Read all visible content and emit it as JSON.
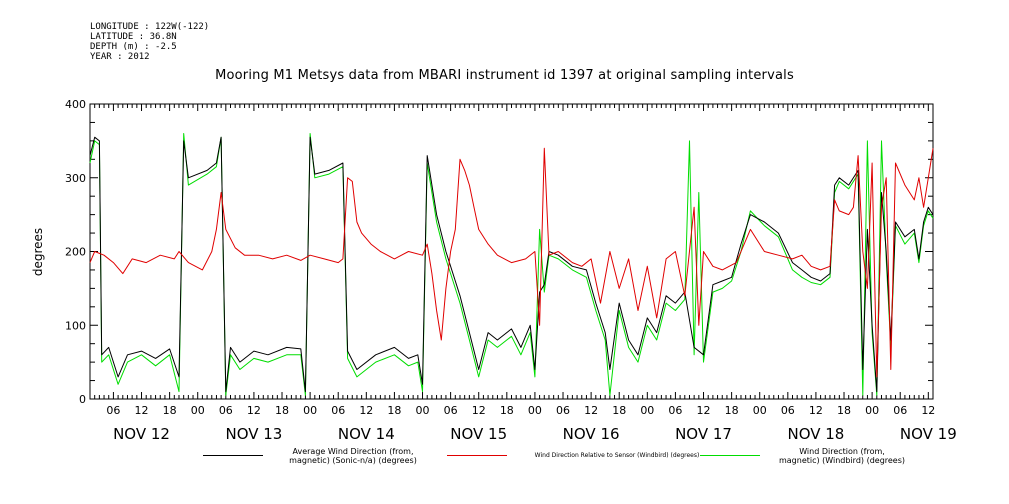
{
  "meta": {
    "longitude": "LONGITUDE : 122W(-122)",
    "latitude": "LATITUDE : 36.8N",
    "depth": "DEPTH (m) : -2.5",
    "year": "YEAR : 2012"
  },
  "chart_data": {
    "type": "line",
    "title": "Mooring M1 Metsys data from MBARI instrument id 1397 at original sampling intervals",
    "xlabel": "",
    "ylabel": "degrees",
    "ylim": [
      0,
      400
    ],
    "yticks": [
      0,
      100,
      200,
      300,
      400
    ],
    "x_unit": "hours since Nov 12 00:00",
    "xlim": [
      1,
      181
    ],
    "hour_ticks": [
      "06",
      "12",
      "18",
      "00"
    ],
    "day_labels": [
      "NOV 12",
      "NOV 13",
      "NOV 14",
      "NOV 15",
      "NOV 16",
      "NOV 17",
      "NOV 18",
      "NOV 19"
    ],
    "grid": false,
    "series": [
      {
        "name": "Average Wind Direction (from, magnetic) (Sonic-n/a) (degrees)",
        "color": "#000000",
        "points": [
          [
            1,
            330
          ],
          [
            2,
            355
          ],
          [
            3,
            350
          ],
          [
            3.5,
            60
          ],
          [
            5,
            70
          ],
          [
            7,
            30
          ],
          [
            9,
            60
          ],
          [
            12,
            65
          ],
          [
            15,
            55
          ],
          [
            18,
            68
          ],
          [
            20,
            30
          ],
          [
            21,
            350
          ],
          [
            22,
            300
          ],
          [
            26,
            310
          ],
          [
            28,
            320
          ],
          [
            29,
            355
          ],
          [
            30,
            10
          ],
          [
            31,
            70
          ],
          [
            33,
            50
          ],
          [
            36,
            65
          ],
          [
            39,
            60
          ],
          [
            43,
            70
          ],
          [
            46,
            68
          ],
          [
            47,
            10
          ],
          [
            48,
            355
          ],
          [
            49,
            305
          ],
          [
            52,
            310
          ],
          [
            55,
            320
          ],
          [
            56,
            65
          ],
          [
            58,
            40
          ],
          [
            62,
            60
          ],
          [
            66,
            70
          ],
          [
            69,
            55
          ],
          [
            71,
            60
          ],
          [
            72,
            20
          ],
          [
            73,
            330
          ],
          [
            75,
            250
          ],
          [
            77,
            200
          ],
          [
            79,
            160
          ],
          [
            80,
            140
          ],
          [
            82,
            90
          ],
          [
            84,
            40
          ],
          [
            86,
            90
          ],
          [
            88,
            80
          ],
          [
            91,
            95
          ],
          [
            93,
            70
          ],
          [
            95,
            100
          ],
          [
            96,
            40
          ],
          [
            97,
            145
          ],
          [
            98,
            155
          ],
          [
            99,
            200
          ],
          [
            101,
            195
          ],
          [
            104,
            180
          ],
          [
            107,
            175
          ],
          [
            109,
            130
          ],
          [
            111,
            90
          ],
          [
            112,
            40
          ],
          [
            114,
            130
          ],
          [
            116,
            80
          ],
          [
            118,
            60
          ],
          [
            120,
            110
          ],
          [
            122,
            90
          ],
          [
            124,
            140
          ],
          [
            126,
            130
          ],
          [
            128,
            145
          ],
          [
            130,
            70
          ],
          [
            132,
            60
          ],
          [
            134,
            155
          ],
          [
            136,
            160
          ],
          [
            138,
            165
          ],
          [
            140,
            210
          ],
          [
            142,
            250
          ],
          [
            145,
            240
          ],
          [
            148,
            225
          ],
          [
            151,
            185
          ],
          [
            153,
            175
          ],
          [
            155,
            165
          ],
          [
            157,
            160
          ],
          [
            159,
            170
          ],
          [
            160,
            290
          ],
          [
            161,
            300
          ],
          [
            163,
            290
          ],
          [
            165,
            310
          ],
          [
            166,
            40
          ],
          [
            167,
            230
          ],
          [
            168,
            100
          ],
          [
            169,
            10
          ],
          [
            170,
            280
          ],
          [
            171,
            200
          ],
          [
            172,
            80
          ],
          [
            173,
            240
          ],
          [
            175,
            220
          ],
          [
            177,
            230
          ],
          [
            178,
            190
          ],
          [
            179,
            240
          ],
          [
            180,
            260
          ],
          [
            181,
            250
          ]
        ]
      },
      {
        "name": "Wind Direction Relative to Sensor (Windbird) (degrees)",
        "color": "#e00000",
        "points": [
          [
            1,
            185
          ],
          [
            2,
            200
          ],
          [
            4,
            195
          ],
          [
            6,
            185
          ],
          [
            8,
            170
          ],
          [
            10,
            190
          ],
          [
            13,
            185
          ],
          [
            16,
            195
          ],
          [
            19,
            190
          ],
          [
            20,
            200
          ],
          [
            22,
            185
          ],
          [
            25,
            175
          ],
          [
            27,
            200
          ],
          [
            28,
            230
          ],
          [
            29,
            280
          ],
          [
            30,
            230
          ],
          [
            32,
            205
          ],
          [
            34,
            195
          ],
          [
            37,
            195
          ],
          [
            40,
            190
          ],
          [
            43,
            195
          ],
          [
            46,
            188
          ],
          [
            48,
            195
          ],
          [
            51,
            190
          ],
          [
            54,
            185
          ],
          [
            55,
            190
          ],
          [
            56,
            300
          ],
          [
            57,
            295
          ],
          [
            58,
            240
          ],
          [
            59,
            225
          ],
          [
            61,
            210
          ],
          [
            63,
            200
          ],
          [
            66,
            190
          ],
          [
            69,
            200
          ],
          [
            72,
            195
          ],
          [
            73,
            210
          ],
          [
            74,
            170
          ],
          [
            75,
            120
          ],
          [
            76,
            80
          ],
          [
            77,
            150
          ],
          [
            78,
            200
          ],
          [
            79,
            230
          ],
          [
            80,
            325
          ],
          [
            81,
            310
          ],
          [
            82,
            290
          ],
          [
            83,
            260
          ],
          [
            84,
            230
          ],
          [
            86,
            210
          ],
          [
            88,
            195
          ],
          [
            91,
            185
          ],
          [
            94,
            190
          ],
          [
            96,
            200
          ],
          [
            97,
            100
          ],
          [
            98,
            340
          ],
          [
            99,
            195
          ],
          [
            101,
            200
          ],
          [
            104,
            185
          ],
          [
            106,
            180
          ],
          [
            108,
            190
          ],
          [
            110,
            130
          ],
          [
            112,
            200
          ],
          [
            114,
            150
          ],
          [
            116,
            190
          ],
          [
            118,
            120
          ],
          [
            120,
            180
          ],
          [
            122,
            110
          ],
          [
            124,
            190
          ],
          [
            126,
            200
          ],
          [
            128,
            140
          ],
          [
            130,
            260
          ],
          [
            131,
            100
          ],
          [
            132,
            200
          ],
          [
            134,
            180
          ],
          [
            136,
            175
          ],
          [
            139,
            185
          ],
          [
            142,
            230
          ],
          [
            145,
            200
          ],
          [
            148,
            195
          ],
          [
            151,
            190
          ],
          [
            153,
            195
          ],
          [
            155,
            180
          ],
          [
            157,
            175
          ],
          [
            159,
            180
          ],
          [
            160,
            270
          ],
          [
            161,
            255
          ],
          [
            163,
            250
          ],
          [
            164,
            260
          ],
          [
            165,
            330
          ],
          [
            166,
            200
          ],
          [
            167,
            150
          ],
          [
            168,
            320
          ],
          [
            169,
            30
          ],
          [
            170,
            260
          ],
          [
            171,
            300
          ],
          [
            172,
            40
          ],
          [
            173,
            320
          ],
          [
            175,
            290
          ],
          [
            177,
            270
          ],
          [
            178,
            300
          ],
          [
            179,
            260
          ],
          [
            180,
            300
          ],
          [
            181,
            340
          ]
        ]
      },
      {
        "name": "Wind Direction (from, magnetic) (Windbird) (degrees)",
        "color": "#00dd00",
        "points": [
          [
            1,
            320
          ],
          [
            2,
            350
          ],
          [
            3,
            345
          ],
          [
            3.5,
            50
          ],
          [
            5,
            60
          ],
          [
            7,
            20
          ],
          [
            9,
            50
          ],
          [
            12,
            60
          ],
          [
            15,
            45
          ],
          [
            18,
            60
          ],
          [
            20,
            10
          ],
          [
            21,
            360
          ],
          [
            22,
            290
          ],
          [
            26,
            305
          ],
          [
            28,
            315
          ],
          [
            29,
            355
          ],
          [
            30,
            5
          ],
          [
            31,
            60
          ],
          [
            33,
            40
          ],
          [
            36,
            55
          ],
          [
            39,
            50
          ],
          [
            43,
            60
          ],
          [
            46,
            60
          ],
          [
            47,
            5
          ],
          [
            48,
            360
          ],
          [
            49,
            300
          ],
          [
            52,
            305
          ],
          [
            55,
            315
          ],
          [
            56,
            55
          ],
          [
            58,
            30
          ],
          [
            62,
            50
          ],
          [
            66,
            60
          ],
          [
            69,
            45
          ],
          [
            71,
            50
          ],
          [
            72,
            10
          ],
          [
            73,
            320
          ],
          [
            75,
            240
          ],
          [
            77,
            190
          ],
          [
            79,
            150
          ],
          [
            80,
            130
          ],
          [
            82,
            80
          ],
          [
            84,
            30
          ],
          [
            86,
            80
          ],
          [
            88,
            70
          ],
          [
            91,
            85
          ],
          [
            93,
            60
          ],
          [
            95,
            90
          ],
          [
            96,
            30
          ],
          [
            97,
            230
          ],
          [
            98,
            145
          ],
          [
            99,
            195
          ],
          [
            101,
            190
          ],
          [
            104,
            175
          ],
          [
            107,
            165
          ],
          [
            109,
            120
          ],
          [
            111,
            80
          ],
          [
            112,
            5
          ],
          [
            114,
            120
          ],
          [
            116,
            70
          ],
          [
            118,
            50
          ],
          [
            120,
            100
          ],
          [
            122,
            80
          ],
          [
            124,
            130
          ],
          [
            126,
            120
          ],
          [
            128,
            135
          ],
          [
            129,
            350
          ],
          [
            130,
            60
          ],
          [
            131,
            280
          ],
          [
            132,
            50
          ],
          [
            134,
            145
          ],
          [
            136,
            150
          ],
          [
            138,
            160
          ],
          [
            140,
            200
          ],
          [
            142,
            255
          ],
          [
            145,
            235
          ],
          [
            148,
            220
          ],
          [
            151,
            175
          ],
          [
            153,
            165
          ],
          [
            155,
            158
          ],
          [
            157,
            155
          ],
          [
            159,
            165
          ],
          [
            160,
            280
          ],
          [
            161,
            295
          ],
          [
            163,
            285
          ],
          [
            165,
            305
          ],
          [
            166,
            5
          ],
          [
            167,
            350
          ],
          [
            168,
            90
          ],
          [
            169,
            5
          ],
          [
            170,
            350
          ],
          [
            171,
            190
          ],
          [
            172,
            70
          ],
          [
            173,
            235
          ],
          [
            175,
            210
          ],
          [
            177,
            225
          ],
          [
            178,
            185
          ],
          [
            179,
            235
          ],
          [
            180,
            255
          ],
          [
            181,
            245
          ]
        ]
      }
    ]
  },
  "legend": {
    "black_label_line1": "Average Wind Direction (from,",
    "black_label_line2": "magnetic) (Sonic-n/a) (degrees)",
    "red_label": "Wind Direction Relative to Sensor (Windbird) (degrees)",
    "green_label_line1": "Wind Direction (from,",
    "green_label_line2": "magnetic) (Windbird) (degrees)"
  }
}
